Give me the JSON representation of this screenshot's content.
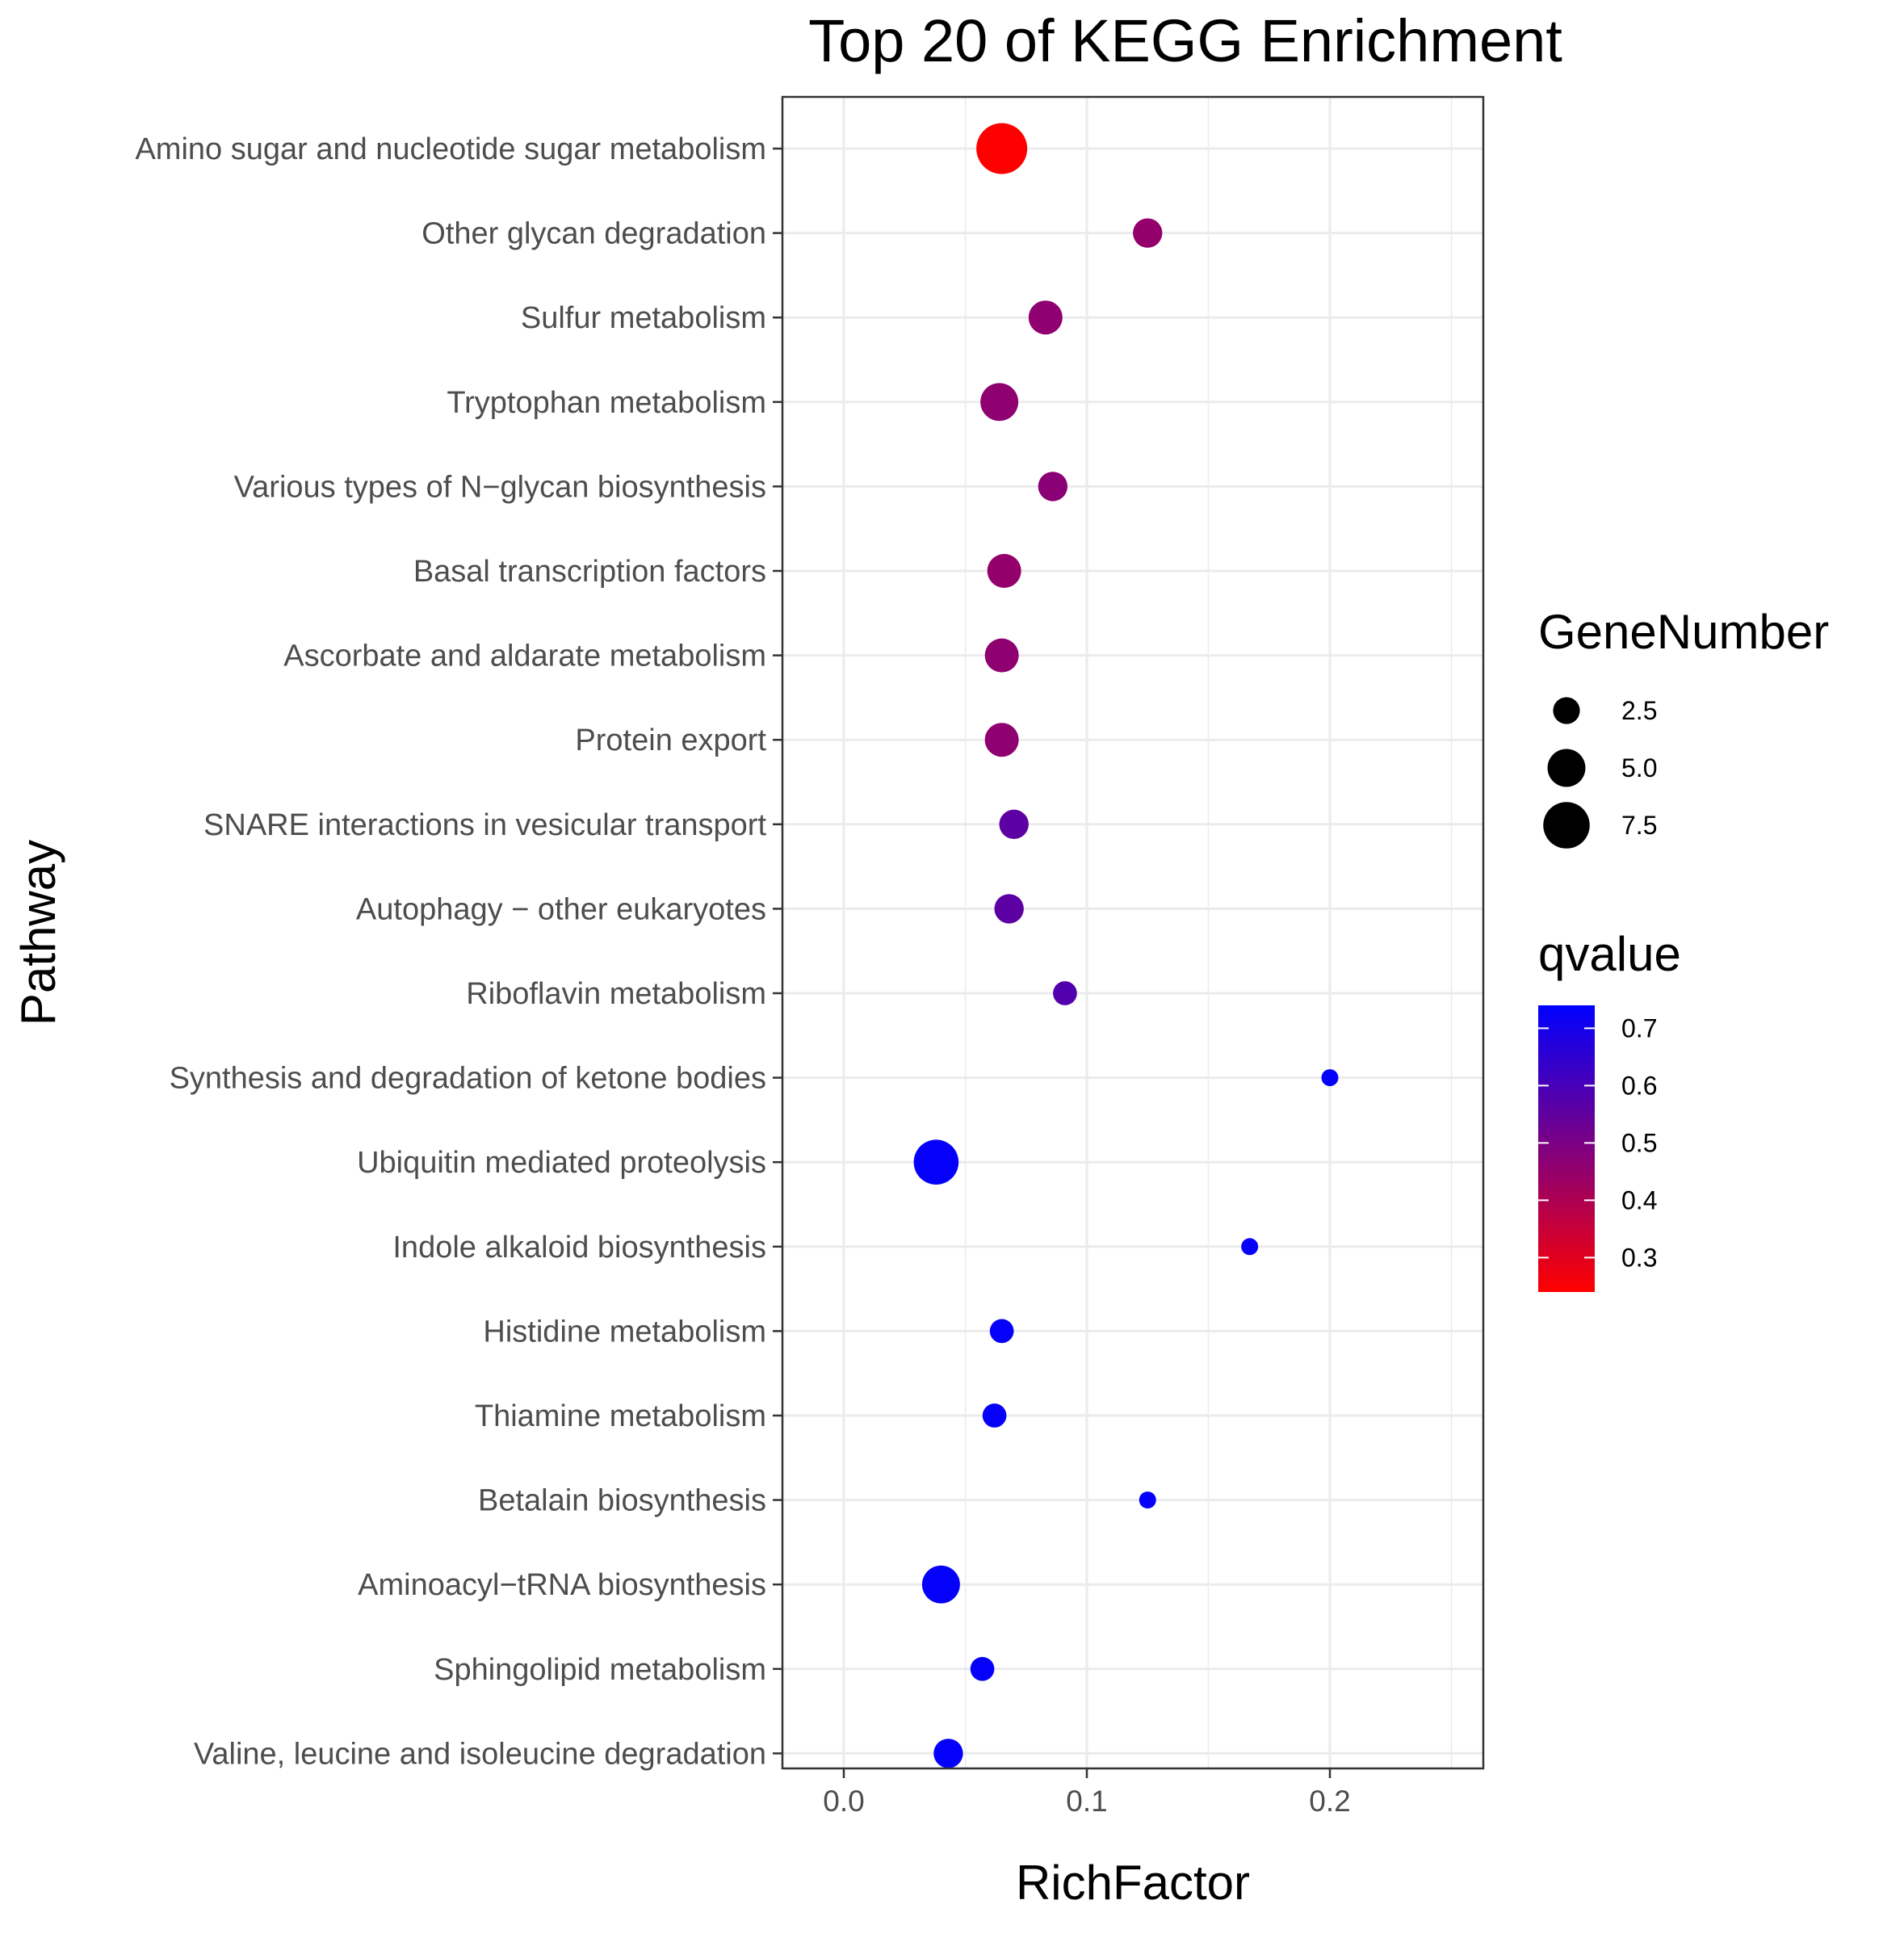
{
  "chart_data": {
    "type": "scatter",
    "title": "Top 20 of KEGG Enrichment",
    "xlabel": "RichFactor",
    "ylabel": "Pathway",
    "xlim": [
      -0.025,
      0.263
    ],
    "xticks": [
      0.0,
      0.1,
      0.2
    ],
    "xtick_labels": [
      "0.0",
      "0.1",
      "0.2"
    ],
    "grid": true,
    "categories": [
      "Amino sugar and nucleotide sugar metabolism",
      "Other glycan degradation",
      "Sulfur metabolism",
      "Tryptophan metabolism",
      "Various types of N−glycan biosynthesis",
      "Basal transcription factors",
      "Ascorbate and aldarate metabolism",
      "Protein export",
      "SNARE interactions in vesicular transport",
      "Autophagy − other eukaryotes",
      "Riboflavin metabolism",
      "Synthesis and degradation of ketone bodies",
      "Ubiquitin mediated proteolysis",
      "Indole alkaloid biosynthesis",
      "Histidine metabolism",
      "Thiamine metabolism",
      "Betalain biosynthesis",
      "Aminoacyl−tRNA biosynthesis",
      "Sphingolipid metabolism",
      "Valine, leucine and isoleucine degradation"
    ],
    "points": [
      {
        "pathway": "Amino sugar and nucleotide sugar metabolism",
        "rich_factor": 0.065,
        "gene_number": 9,
        "qvalue": 0.24
      },
      {
        "pathway": "Other glycan degradation",
        "rich_factor": 0.125,
        "gene_number": 3,
        "qvalue": 0.45
      },
      {
        "pathway": "Sulfur metabolism",
        "rich_factor": 0.083,
        "gene_number": 4,
        "qvalue": 0.46
      },
      {
        "pathway": "Tryptophan metabolism",
        "rich_factor": 0.064,
        "gene_number": 5,
        "qvalue": 0.46
      },
      {
        "pathway": "Various types of N−glycan biosynthesis",
        "rich_factor": 0.086,
        "gene_number": 3,
        "qvalue": 0.47
      },
      {
        "pathway": "Basal transcription factors",
        "rich_factor": 0.066,
        "gene_number": 4,
        "qvalue": 0.45
      },
      {
        "pathway": "Ascorbate and aldarate metabolism",
        "rich_factor": 0.065,
        "gene_number": 4,
        "qvalue": 0.46
      },
      {
        "pathway": "Protein export",
        "rich_factor": 0.065,
        "gene_number": 4,
        "qvalue": 0.46
      },
      {
        "pathway": "SNARE interactions in vesicular transport",
        "rich_factor": 0.07,
        "gene_number": 3,
        "qvalue": 0.56
      },
      {
        "pathway": "Autophagy − other eukaryotes",
        "rich_factor": 0.068,
        "gene_number": 3,
        "qvalue": 0.56
      },
      {
        "pathway": "Riboflavin metabolism",
        "rich_factor": 0.091,
        "gene_number": 2,
        "qvalue": 0.58
      },
      {
        "pathway": "Synthesis and degradation of ketone bodies",
        "rich_factor": 0.2,
        "gene_number": 1,
        "qvalue": 0.73
      },
      {
        "pathway": "Ubiquitin mediated proteolysis",
        "rich_factor": 0.038,
        "gene_number": 7,
        "qvalue": 0.73
      },
      {
        "pathway": "Indole alkaloid biosynthesis",
        "rich_factor": 0.167,
        "gene_number": 1,
        "qvalue": 0.73
      },
      {
        "pathway": "Histidine metabolism",
        "rich_factor": 0.065,
        "gene_number": 2,
        "qvalue": 0.73
      },
      {
        "pathway": "Thiamine metabolism",
        "rich_factor": 0.062,
        "gene_number": 2,
        "qvalue": 0.73
      },
      {
        "pathway": "Betalain biosynthesis",
        "rich_factor": 0.125,
        "gene_number": 1,
        "qvalue": 0.73
      },
      {
        "pathway": "Aminoacyl−tRNA biosynthesis",
        "rich_factor": 0.04,
        "gene_number": 5,
        "qvalue": 0.73
      },
      {
        "pathway": "Sphingolipid metabolism",
        "rich_factor": 0.057,
        "gene_number": 2,
        "qvalue": 0.73
      },
      {
        "pathway": "Valine, leucine and isoleucine degradation",
        "rich_factor": 0.043,
        "gene_number": 3,
        "qvalue": 0.73
      }
    ],
    "size_legend": {
      "title": "GeneNumber",
      "values": [
        2.5,
        5.0,
        7.5
      ],
      "labels": [
        "2.5",
        "5.0",
        "7.5"
      ]
    },
    "color_legend": {
      "title": "qvalue",
      "range": [
        0.24,
        0.74
      ],
      "ticks": [
        0.7,
        0.6,
        0.5,
        0.4,
        0.3
      ],
      "tick_labels": [
        "0.7",
        "0.6",
        "0.5",
        "0.4",
        "0.3"
      ],
      "low_color": "#FF0000",
      "high_color": "#0000FF"
    },
    "point_color_low": "#FF0000",
    "point_color_high": "#0000FF",
    "grid_color": "#EBEBEB",
    "panel_border_color": "#333333"
  }
}
